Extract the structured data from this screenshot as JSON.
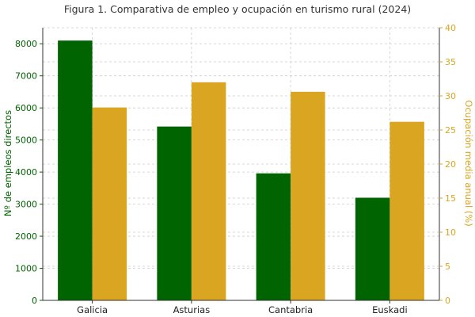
{
  "chart_data": {
    "type": "bar",
    "title": "Figura 1. Comparativa de empleo y ocupación en turismo rural (2024)",
    "categories": [
      "Galicia",
      "Asturias",
      "Cantabria",
      "Euskadi"
    ],
    "series": [
      {
        "name": "",
        "axis": "left",
        "color": "#006400",
        "values": [
          8100,
          5420,
          3960,
          3200
        ]
      },
      {
        "name": "",
        "axis": "right",
        "color": "#DAA520",
        "values": [
          28.3,
          32.0,
          30.6,
          26.2
        ]
      }
    ],
    "ylabel_left": "Nº de empleos directos",
    "ylabel_right": "Ocupación media anual (%)",
    "ylim_left": [
      0,
      8500
    ],
    "ylim_right": [
      0,
      40
    ],
    "yticks_left": [
      "0",
      "1000",
      "2000",
      "3000",
      "4000",
      "5000",
      "6000",
      "7000",
      "8000"
    ],
    "yticks_right": [
      "0",
      "5",
      "10",
      "15",
      "20",
      "25",
      "30",
      "35",
      "40"
    ],
    "left_axis_color": "#006400",
    "right_axis_color": "#DAA520",
    "grid": true,
    "legend": "none"
  }
}
